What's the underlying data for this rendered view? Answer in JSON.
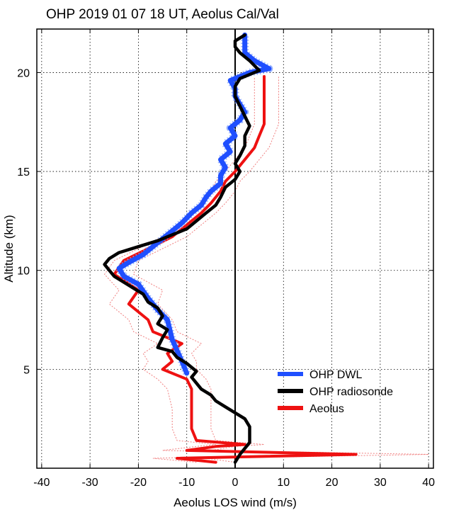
{
  "chart_data": {
    "type": "line",
    "title": "OHP 2019 01 07 18 UT, Aeolus Cal/Val",
    "xlabel": "Aeolus LOS wind (m/s)",
    "ylabel": "Altitude (km)",
    "xlim": [
      -41,
      41
    ],
    "ylim": [
      0,
      22.2
    ],
    "xticks": [
      -40,
      -30,
      -20,
      -10,
      0,
      10,
      20,
      30,
      40
    ],
    "yticks": [
      5,
      10,
      15,
      20
    ],
    "xtick_labels": [
      "-40",
      "-30",
      "-20",
      "-10",
      "0",
      "10",
      "20",
      "30",
      "40"
    ],
    "ytick_labels": [
      "5",
      "10",
      "15",
      "20"
    ],
    "grid": true,
    "zero_line": true,
    "legend_position": "lower-right",
    "series": [
      {
        "name": "OHP DWL",
        "color": "#1f4fff",
        "points": [
          [
            -10,
            4.8
          ],
          [
            -11,
            5.4
          ],
          [
            -13,
            6.5
          ],
          [
            -14,
            7.5
          ],
          [
            -16,
            8.0
          ],
          [
            -18,
            8.6
          ],
          [
            -20,
            9.3
          ],
          [
            -23,
            9.7
          ],
          [
            -24,
            10.1
          ],
          [
            -22,
            10.4
          ],
          [
            -19,
            10.8
          ],
          [
            -17,
            11.2
          ],
          [
            -15,
            11.6
          ],
          [
            -13,
            12.0
          ],
          [
            -11,
            12.4
          ],
          [
            -9,
            12.9
          ],
          [
            -7,
            13.3
          ],
          [
            -6,
            13.7
          ],
          [
            -5,
            14.0
          ],
          [
            -3,
            14.4
          ],
          [
            -3,
            14.8
          ],
          [
            -2,
            15.2
          ],
          [
            -3,
            15.6
          ],
          [
            -1,
            16.0
          ],
          [
            -2,
            16.4
          ],
          [
            0,
            16.8
          ],
          [
            -1,
            17.2
          ],
          [
            1,
            17.6
          ],
          [
            2,
            18.0
          ],
          [
            1,
            18.4
          ],
          [
            0,
            18.8
          ],
          [
            0,
            19.2
          ],
          [
            -1,
            19.6
          ],
          [
            3,
            20.0
          ],
          [
            7,
            20.2
          ],
          [
            4,
            20.6
          ],
          [
            2,
            21.0
          ],
          [
            2,
            21.5
          ],
          [
            2,
            21.9
          ]
        ]
      },
      {
        "name": "OHP radiosonde",
        "color": "#000000",
        "points": [
          [
            0,
            0.3
          ],
          [
            1,
            0.7
          ],
          [
            2,
            1.0
          ],
          [
            3,
            1.3
          ],
          [
            3,
            1.7
          ],
          [
            3,
            2.1
          ],
          [
            2,
            2.5
          ],
          [
            0,
            2.8
          ],
          [
            -2,
            3.1
          ],
          [
            -4,
            3.4
          ],
          [
            -5,
            3.7
          ],
          [
            -7,
            4.0
          ],
          [
            -8,
            4.3
          ],
          [
            -9,
            4.6
          ],
          [
            -8,
            4.9
          ],
          [
            -10,
            5.3
          ],
          [
            -12,
            5.6
          ],
          [
            -13,
            5.9
          ],
          [
            -16,
            6.1
          ],
          [
            -15,
            6.6
          ],
          [
            -14,
            7.0
          ],
          [
            -16,
            7.3
          ],
          [
            -15,
            7.7
          ],
          [
            -16,
            8.1
          ],
          [
            -18,
            8.4
          ],
          [
            -19,
            8.8
          ],
          [
            -21,
            9.1
          ],
          [
            -23,
            9.4
          ],
          [
            -25,
            9.7
          ],
          [
            -26,
            10.0
          ],
          [
            -27,
            10.3
          ],
          [
            -26,
            10.6
          ],
          [
            -24,
            10.9
          ],
          [
            -20,
            11.2
          ],
          [
            -16,
            11.5
          ],
          [
            -13,
            11.8
          ],
          [
            -10,
            12.1
          ],
          [
            -8,
            12.5
          ],
          [
            -6,
            12.9
          ],
          [
            -4,
            13.3
          ],
          [
            -3,
            13.7
          ],
          [
            -2,
            14.2
          ],
          [
            0,
            14.6
          ],
          [
            1,
            15.0
          ],
          [
            0,
            15.4
          ],
          [
            1,
            15.8
          ],
          [
            2,
            16.3
          ],
          [
            2,
            16.8
          ],
          [
            3,
            17.3
          ],
          [
            2,
            17.8
          ],
          [
            1,
            18.3
          ],
          [
            0,
            18.8
          ],
          [
            0,
            19.3
          ],
          [
            1,
            19.7
          ],
          [
            5,
            20.1
          ],
          [
            3,
            20.6
          ],
          [
            1,
            21.0
          ],
          [
            0,
            21.3
          ],
          [
            0,
            21.6
          ],
          [
            2,
            21.9
          ]
        ]
      },
      {
        "name": "Aeolus",
        "color": "#ee1111",
        "points": [
          [
            -4,
            0.3
          ],
          [
            -12,
            0.5
          ],
          [
            25,
            0.7
          ],
          [
            -10,
            0.9
          ],
          [
            -4,
            1.1
          ],
          [
            2,
            1.2
          ],
          [
            -8,
            1.4
          ],
          [
            -9,
            2.0
          ],
          [
            -9,
            3.0
          ],
          [
            -9,
            4.0
          ],
          [
            -10,
            4.5
          ],
          [
            -15,
            5.0
          ],
          [
            -13,
            5.4
          ],
          [
            -14,
            5.8
          ],
          [
            -11,
            6.3
          ],
          [
            -17,
            6.9
          ],
          [
            -18,
            7.5
          ],
          [
            -22,
            8.3
          ],
          [
            -20,
            9.0
          ],
          [
            -25,
            9.8
          ],
          [
            -23,
            10.5
          ],
          [
            -18,
            11.1
          ],
          [
            -13,
            11.7
          ],
          [
            -10,
            12.3
          ],
          [
            -7,
            12.9
          ],
          [
            -5,
            13.4
          ],
          [
            -3,
            14.0
          ],
          [
            -2,
            14.5
          ],
          [
            0,
            15.0
          ],
          [
            2,
            15.6
          ],
          [
            4,
            16.2
          ],
          [
            5,
            16.8
          ],
          [
            6,
            17.4
          ],
          [
            6,
            18.0
          ],
          [
            6,
            18.6
          ],
          [
            6,
            19.2
          ],
          [
            6,
            19.8
          ]
        ]
      }
    ],
    "uncertainty_bounds": {
      "color": "#f08080",
      "lower": [
        [
          -8,
          0.3
        ],
        [
          -17,
          0.5
        ],
        [
          18,
          0.7
        ],
        [
          -15,
          0.9
        ],
        [
          -8,
          1.1
        ],
        [
          -4,
          1.2
        ],
        [
          -12,
          1.4
        ],
        [
          -13,
          2.0
        ],
        [
          -13,
          3.0
        ],
        [
          -14,
          4.0
        ],
        [
          -16,
          4.5
        ],
        [
          -19,
          5.0
        ],
        [
          -18,
          5.4
        ],
        [
          -19,
          5.8
        ],
        [
          -16,
          6.3
        ],
        [
          -21,
          6.9
        ],
        [
          -22,
          7.5
        ],
        [
          -26,
          8.3
        ],
        [
          -24,
          9.0
        ],
        [
          -27,
          9.8
        ],
        [
          -25,
          10.5
        ],
        [
          -20,
          11.1
        ],
        [
          -15,
          11.7
        ],
        [
          -12,
          12.3
        ],
        [
          -9,
          12.9
        ],
        [
          -7,
          13.4
        ],
        [
          -5,
          14.0
        ],
        [
          -4,
          14.5
        ],
        [
          -2,
          15.0
        ],
        [
          0,
          15.6
        ],
        [
          2,
          16.2
        ],
        [
          3,
          16.8
        ],
        [
          4,
          17.4
        ],
        [
          4,
          18.0
        ],
        [
          4,
          18.6
        ],
        [
          4,
          19.2
        ],
        [
          4,
          19.8
        ]
      ],
      "upper": [
        [
          0,
          0.3
        ],
        [
          -6,
          0.5
        ],
        [
          40,
          0.7
        ],
        [
          -5,
          0.9
        ],
        [
          0,
          1.1
        ],
        [
          6,
          1.2
        ],
        [
          -4,
          1.4
        ],
        [
          -5,
          2.0
        ],
        [
          -5,
          3.0
        ],
        [
          -5,
          4.0
        ],
        [
          -6,
          4.5
        ],
        [
          -8,
          5.0
        ],
        [
          -8,
          5.4
        ],
        [
          -9,
          5.8
        ],
        [
          -7,
          6.3
        ],
        [
          -12,
          6.9
        ],
        [
          -13,
          7.5
        ],
        [
          -16,
          8.3
        ],
        [
          -15,
          9.0
        ],
        [
          -21,
          9.8
        ],
        [
          -20,
          10.5
        ],
        [
          -15,
          11.1
        ],
        [
          -10,
          11.7
        ],
        [
          -7,
          12.3
        ],
        [
          -4,
          12.9
        ],
        [
          -2,
          13.4
        ],
        [
          0,
          14.0
        ],
        [
          1,
          14.5
        ],
        [
          3,
          15.0
        ],
        [
          5,
          15.6
        ],
        [
          7,
          16.2
        ],
        [
          8,
          16.8
        ],
        [
          9,
          17.4
        ],
        [
          9,
          18.0
        ],
        [
          9,
          18.6
        ],
        [
          9,
          19.2
        ],
        [
          9,
          19.8
        ]
      ]
    }
  }
}
